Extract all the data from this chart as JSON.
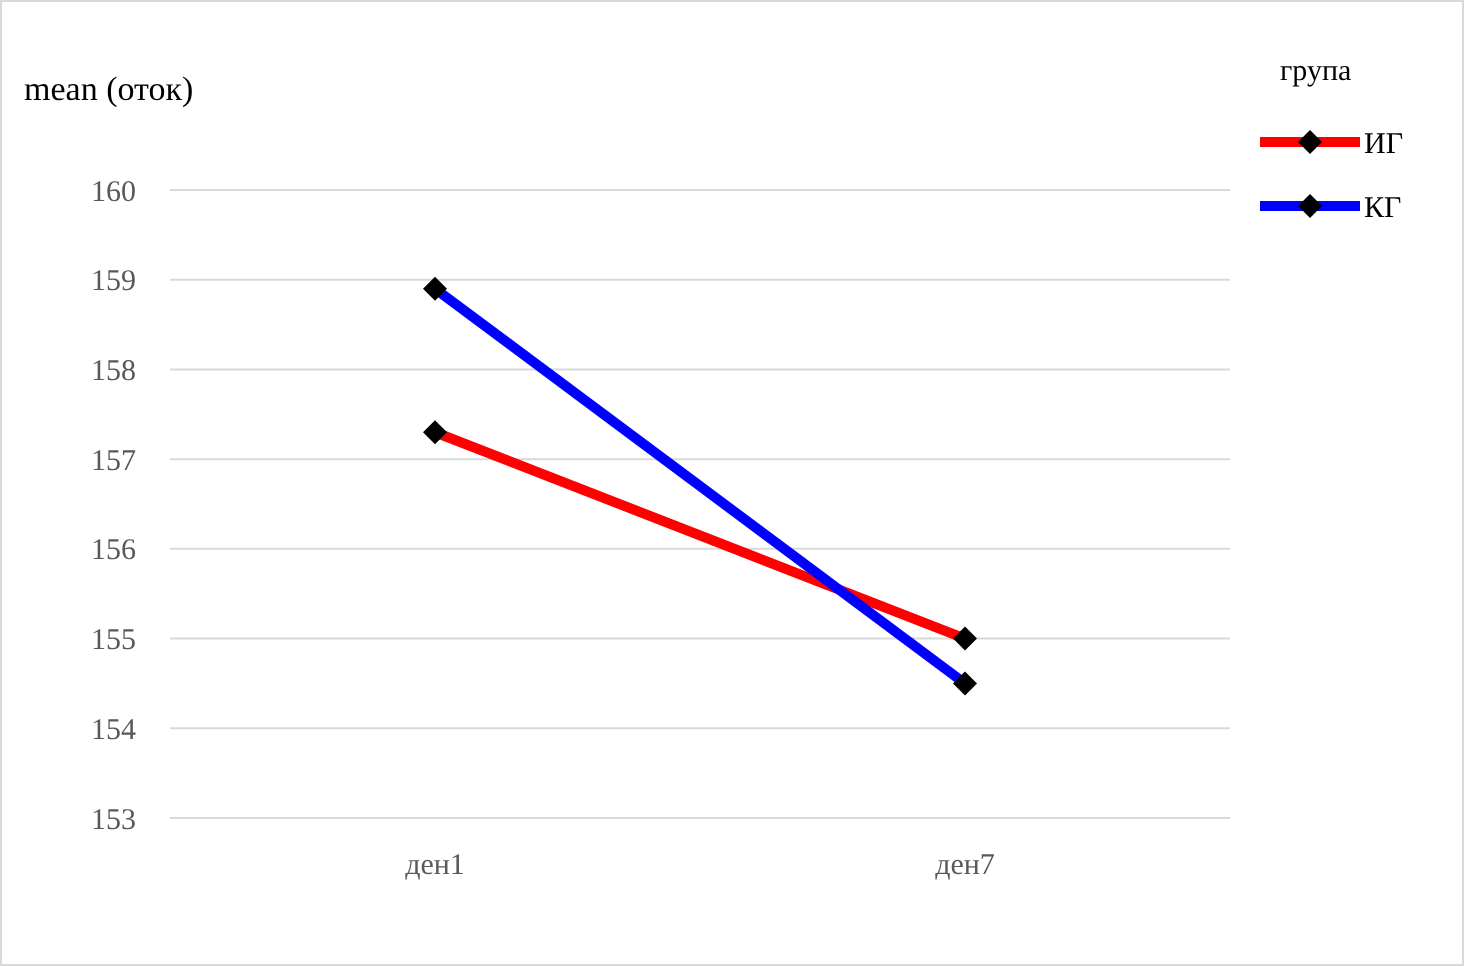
{
  "chart_data": {
    "type": "line",
    "ylabel": "mean (оток)",
    "legend_title": "група",
    "categories": [
      "ден1",
      "ден7"
    ],
    "series": [
      {
        "name": "ИГ",
        "color": "#ff0000",
        "values": [
          157.3,
          155.0
        ]
      },
      {
        "name": "КГ",
        "color": "#0000ff",
        "values": [
          158.9,
          154.5
        ]
      }
    ],
    "ylim": [
      153,
      160
    ],
    "yticks": [
      153,
      154,
      155,
      156,
      157,
      158,
      159,
      160
    ],
    "grid": "y",
    "legend": "top right",
    "marker": "diamond",
    "line_style": "solid"
  }
}
